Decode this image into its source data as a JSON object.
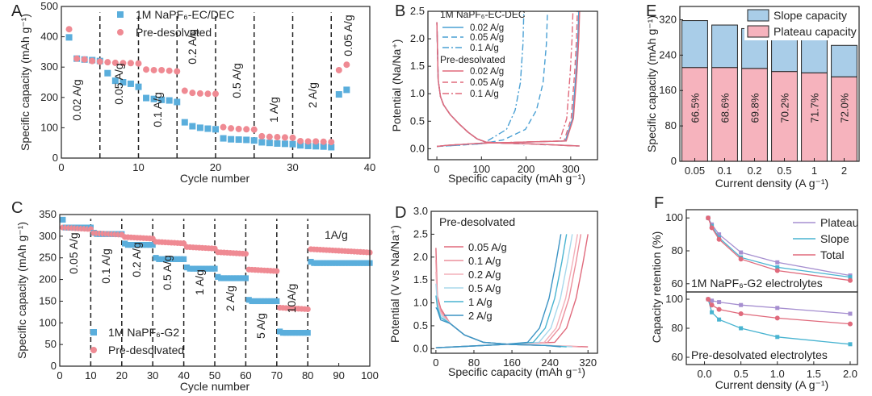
{
  "colors": {
    "blue": "#5aaedc",
    "pink": "#ef8a93",
    "blue_fill": "#a9cde8",
    "pink_fill": "#f6b3bd",
    "line_blue": "#4aa0d4",
    "line_pink": "#e06a7c",
    "light_blue": "#a8d8ec",
    "purple": "#a68fd0",
    "teal": "#49b4d1",
    "axis": "#222222"
  },
  "panels": {
    "A": {
      "label": "A",
      "chart_data": {
        "type": "scatter",
        "xlabel": "Cycle number",
        "ylabel": "Specific capacity (mAh g⁻¹)",
        "xlim": [
          0,
          40
        ],
        "ylim": [
          0,
          500
        ],
        "xticks": [
          "0",
          "10",
          "20",
          "30",
          "40"
        ],
        "yticks": [
          "0",
          "100",
          "200",
          "300",
          "400",
          "500"
        ],
        "legend": [
          "1M NaPF₆-EC/DEC",
          "Pre-desolvated"
        ],
        "dividers": [
          5,
          10,
          15,
          20,
          25,
          30,
          35
        ],
        "annotations": [
          "0.02 A/g",
          "0.05 A/g",
          "0.1 A/g",
          "0.2 A/g",
          "0.5 A/g",
          "1 A/g",
          "2 A/g",
          "0.05 A/g"
        ],
        "series": [
          {
            "name": "1M NaPF₆-EC/DEC",
            "x": [
              1,
              2,
              3,
              4,
              5,
              6,
              7,
              8,
              9,
              10,
              11,
              12,
              13,
              14,
              15,
              16,
              17,
              18,
              19,
              20,
              21,
              22,
              23,
              24,
              25,
              26,
              27,
              28,
              29,
              30,
              31,
              32,
              33,
              34,
              35,
              36,
              37
            ],
            "y": [
              398,
              328,
              325,
              323,
              320,
              280,
              255,
              250,
              245,
              235,
              198,
              195,
              192,
              190,
              185,
              118,
              105,
              100,
              97,
              95,
              65,
              62,
              61,
              60,
              58,
              52,
              50,
              48,
              47,
              46,
              42,
              40,
              39,
              38,
              36,
              210,
              225
            ]
          },
          {
            "name": "Pre-desolvated",
            "x": [
              1,
              2,
              3,
              4,
              5,
              6,
              7,
              8,
              9,
              10,
              11,
              12,
              13,
              14,
              15,
              16,
              17,
              18,
              19,
              20,
              21,
              22,
              23,
              24,
              25,
              26,
              27,
              28,
              29,
              30,
              31,
              32,
              33,
              34,
              35,
              36,
              37
            ],
            "y": [
              425,
              328,
              325,
              320,
              318,
              316,
              314,
              313,
              313,
              312,
              292,
              290,
              290,
              288,
              286,
              222,
              215,
              213,
              212,
              212,
              102,
              98,
              96,
              95,
              94,
              72,
              70,
              69,
              68,
              67,
              56,
              55,
              55,
              54,
              53,
              290,
              308
            ]
          }
        ]
      }
    },
    "B": {
      "label": "B",
      "chart_data": {
        "type": "line",
        "xlabel": "Specific capacity (mAh g⁻¹)",
        "ylabel": "Potential (Na/Na⁺)",
        "xlim": [
          -20,
          360
        ],
        "ylim": [
          -0.2,
          2.5
        ],
        "xticks": [
          "0",
          "100",
          "200",
          "300"
        ],
        "yticks": [
          "0.0",
          "0.5",
          "1.0",
          "1.5",
          "2.0",
          "2.5"
        ],
        "legend_title_1": "1M NaPF₆-EC-DEC",
        "legend_title_2": "Pre-desolvated",
        "series": [
          {
            "name": "0.02 A/g (EC/DEC)",
            "end_capacity": 318
          },
          {
            "name": "0.05 A/g (EC/DEC)",
            "end_capacity": 248
          },
          {
            "name": "0.1 A/g (EC/DEC)",
            "end_capacity": 195
          },
          {
            "name": "0.02 A/g (Pre-desolvated)",
            "end_capacity": 320
          },
          {
            "name": "0.05 A/g (Pre-desolvated)",
            "end_capacity": 315
          },
          {
            "name": "0.1 A/g (Pre-desolvated)",
            "end_capacity": 305
          }
        ]
      }
    },
    "C": {
      "label": "C",
      "chart_data": {
        "type": "scatter",
        "xlabel": "Cycle number",
        "ylabel": "Specific capacity (mAh g⁻¹)",
        "xlim": [
          0,
          100
        ],
        "ylim": [
          0,
          350
        ],
        "xticks": [
          "0",
          "10",
          "20",
          "30",
          "40",
          "50",
          "60",
          "70",
          "80",
          "90",
          "100"
        ],
        "yticks": [
          "0",
          "50",
          "100",
          "150",
          "200",
          "250",
          "300",
          "350"
        ],
        "legend": [
          "1M NaPF₆-G2",
          "Pre-desolvated"
        ],
        "dividers": [
          10,
          20,
          30,
          40,
          50,
          60,
          70,
          80
        ],
        "annotations": [
          "0.05 A/g",
          "0.1 A/g",
          "0.2 A/g",
          "0.5 A/g",
          "1 A/g",
          "2 A/g",
          "5 A/g",
          "10A/g",
          "1A/g"
        ],
        "steps": [
          {
            "x0": 1,
            "x1": 10,
            "g2": 320,
            "pre": 320
          },
          {
            "x0": 11,
            "x1": 20,
            "g2": 305,
            "pre": 307
          },
          {
            "x0": 21,
            "x1": 30,
            "g2": 280,
            "pre": 298
          },
          {
            "x0": 31,
            "x1": 40,
            "g2": 247,
            "pre": 287
          },
          {
            "x0": 41,
            "x1": 50,
            "g2": 225,
            "pre": 275
          },
          {
            "x0": 51,
            "x1": 60,
            "g2": 203,
            "pre": 263
          },
          {
            "x0": 61,
            "x1": 70,
            "g2": 150,
            "pre": 223
          },
          {
            "x0": 71,
            "x1": 80,
            "g2": 77,
            "pre": 135
          },
          {
            "x0": 81,
            "x1": 100,
            "g2": 238,
            "pre": 270
          }
        ]
      }
    },
    "D": {
      "label": "D",
      "chart_data": {
        "type": "line",
        "xlabel": "Specific capacity (mAh g⁻¹)",
        "ylabel": "Potential (V vs Na/Na⁺)",
        "xlim": [
          -10,
          340
        ],
        "ylim": [
          -0.1,
          3.0
        ],
        "xticks": [
          "0",
          "80",
          "160",
          "240",
          "320"
        ],
        "yticks": [
          "0.0",
          "0.5",
          "1.0",
          "1.5",
          "2.0",
          "2.5",
          "3.0"
        ],
        "legend_title": "Pre-desolvated",
        "series": [
          {
            "name": "0.05 A/g",
            "end_capacity": 320
          },
          {
            "name": "0.1 A/g",
            "end_capacity": 305
          },
          {
            "name": "0.2 A/g",
            "end_capacity": 298
          },
          {
            "name": "0.5 A/g",
            "end_capacity": 287
          },
          {
            "name": "1 A/g",
            "end_capacity": 275
          },
          {
            "name": "2 A/g",
            "end_capacity": 263
          }
        ]
      }
    },
    "E": {
      "label": "E",
      "chart_data": {
        "type": "bar",
        "stacked": true,
        "xlabel": "Current density (A g⁻¹)",
        "ylabel": "Specific capacity (mAh g⁻¹)",
        "ylim": [
          0,
          350
        ],
        "yticks": [
          "0",
          "80",
          "160",
          "240",
          "320"
        ],
        "categories": [
          "0.05",
          "0.1",
          "0.2",
          "0.5",
          "1",
          "2"
        ],
        "series": [
          {
            "name": "Plateau capacity",
            "values": [
              212,
              212,
              210,
              203,
              200,
              191
            ]
          },
          {
            "name": "Slope capacity",
            "values": [
              106,
              96,
              90,
              85,
              75,
              71
            ]
          }
        ],
        "bar_labels": [
          "66.5%",
          "68.6%",
          "69.8%",
          "70.2%",
          "71.7%",
          "72.0%"
        ],
        "legend": [
          "Slope capacity",
          "Plateau capacity"
        ]
      }
    },
    "F": {
      "label": "F",
      "chart_data": [
        {
          "type": "line",
          "title": "1M NaPF₆-G2 electrolytes",
          "ylim": [
            55,
            105
          ],
          "yticks": [
            "60",
            "80",
            "100"
          ],
          "x": [
            0.05,
            0.1,
            0.2,
            0.5,
            1.0,
            2.0
          ],
          "series": [
            {
              "name": "Plateau",
              "values": [
                100,
                96,
                90,
                79,
                73,
                65
              ]
            },
            {
              "name": "Slope",
              "values": [
                100,
                95,
                88,
                76,
                70,
                64
              ]
            },
            {
              "name": "Total",
              "values": [
                100,
                94,
                87,
                75,
                68,
                62
              ]
            }
          ],
          "legend": [
            "Plateau",
            "Slope",
            "Total"
          ]
        },
        {
          "type": "line",
          "title": "Pre-desolvated electrolytes",
          "ylim": [
            55,
            105
          ],
          "yticks": [
            "60",
            "80",
            "100"
          ],
          "x": [
            0.05,
            0.1,
            0.2,
            0.5,
            1.0,
            2.0
          ],
          "xlim": [
            -0.25,
            2.1
          ],
          "xticks": [
            "0.0",
            "0.5",
            "1.0",
            "1.5",
            "2.0"
          ],
          "xlabel": "Current density (A g⁻¹)",
          "ylabel": "Capacity retention (%)",
          "series": [
            {
              "name": "Plateau",
              "values": [
                100,
                99,
                98,
                96,
                94,
                90
              ]
            },
            {
              "name": "Slope",
              "values": [
                100,
                91,
                86,
                80,
                74,
                69
              ]
            },
            {
              "name": "Total",
              "values": [
                100,
                96,
                93,
                90,
                87,
                83
              ]
            }
          ]
        }
      ]
    }
  }
}
